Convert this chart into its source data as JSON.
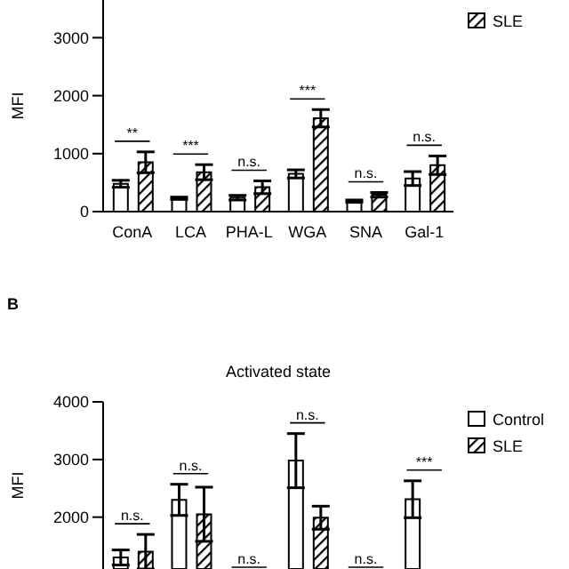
{
  "chart_data": [
    {
      "type": "bar",
      "ylabel": "MFI",
      "categories": [
        "ConA",
        "LCA",
        "PHA-L",
        "WGA",
        "SNA",
        "Gal-1"
      ],
      "ylim": [
        0,
        3650
      ],
      "yticks": [
        0,
        1000,
        2000,
        3000
      ],
      "legend": "top right",
      "series": [
        {
          "color": "#ffffff",
          "values": [
            480,
            230,
            240,
            650,
            180,
            570
          ],
          "errors": [
            60,
            20,
            40,
            70,
            20,
            120
          ]
        },
        {
          "name": "SLE",
          "color": "#000000",
          "values": [
            850,
            680,
            420,
            1610,
            290,
            800
          ],
          "errors": [
            180,
            130,
            110,
            150,
            40,
            160
          ]
        }
      ],
      "annotations": [
        "**",
        "***",
        "n.s.",
        "***",
        "n.s.",
        "n.s."
      ]
    },
    {
      "type": "bar",
      "title": "Activated state",
      "ylabel": "MFI",
      "categories": [
        null,
        null,
        null,
        null,
        null,
        null
      ],
      "tick_labels": "y",
      "ylim": [
        1100,
        4000
      ],
      "yticks": [
        2000,
        3000,
        4000
      ],
      "legend": "top right",
      "series": [
        {
          "name": "Control",
          "color": "#ffffff",
          "values": [
            1300,
            2300,
            null,
            2980,
            null,
            2310
          ],
          "errors": [
            130,
            270,
            null,
            470,
            null,
            320
          ]
        },
        {
          "name": "SLE",
          "color": "#000000",
          "values": [
            1400,
            2050,
            null,
            1990,
            null,
            null
          ],
          "errors": [
            300,
            470,
            null,
            200,
            null,
            null
          ]
        }
      ],
      "annotations": [
        "B",
        "n.s.",
        "n.s.",
        "n.s.",
        "n.s.",
        "n.s.",
        "***"
      ]
    }
  ]
}
